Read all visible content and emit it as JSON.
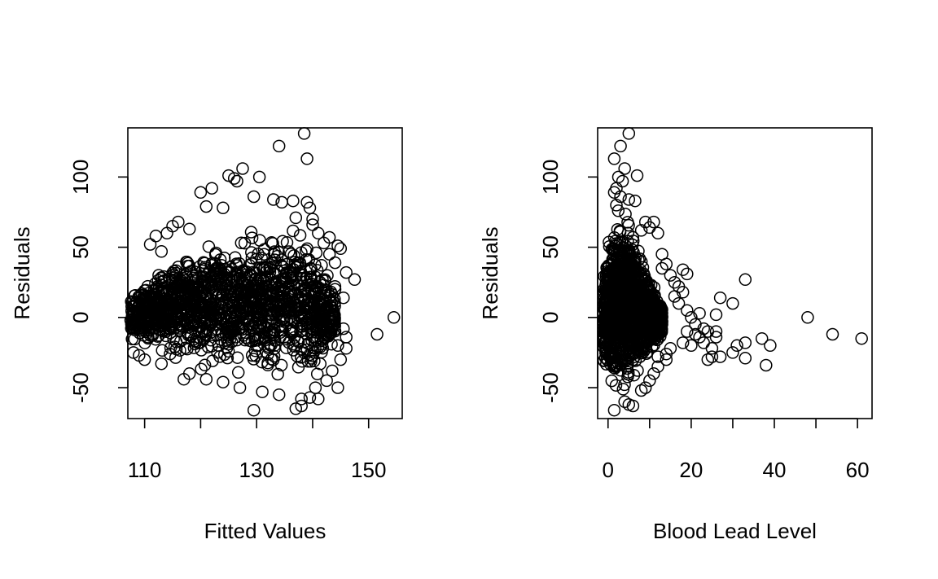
{
  "chart_data": [
    {
      "type": "scatter",
      "title": "",
      "xlabel": "Fitted Values",
      "ylabel": "Residuals",
      "xlim": [
        107,
        156
      ],
      "ylim": [
        -72,
        135
      ],
      "xticks": [
        110,
        120,
        130,
        140,
        150
      ],
      "xtick_labels": [
        "110",
        "",
        "130",
        "",
        "150"
      ],
      "yticks": [
        -50,
        0,
        50,
        100
      ],
      "ytick_labels": [
        "-50",
        "0",
        "50",
        "100"
      ],
      "grid": false,
      "legend": "none",
      "marker": "open-circle",
      "dense_region": {
        "description": "solid overplotted point cloud",
        "x": [
          107.5,
          109,
          111,
          113,
          116,
          119,
          122,
          125,
          128,
          131,
          134,
          137,
          139,
          141,
          142.5,
          143.5,
          144
        ],
        "y_upper": [
          22,
          28,
          36,
          42,
          50,
          56,
          62,
          66,
          70,
          72,
          72,
          70,
          66,
          56,
          46,
          38,
          25
        ],
        "y_lower": [
          -22,
          -25,
          -28,
          -32,
          -36,
          -40,
          -42,
          -44,
          -46,
          -48,
          -50,
          -52,
          -52,
          -48,
          -40,
          -32,
          -20
        ]
      },
      "points": [
        [
          138.5,
          131
        ],
        [
          134,
          122
        ],
        [
          139,
          113
        ],
        [
          127.5,
          106
        ],
        [
          125,
          101
        ],
        [
          126,
          99
        ],
        [
          130.5,
          100
        ],
        [
          120,
          89
        ],
        [
          122,
          92
        ],
        [
          126.5,
          97
        ],
        [
          129.5,
          86
        ],
        [
          133,
          84
        ],
        [
          134.5,
          82
        ],
        [
          136.5,
          83
        ],
        [
          139,
          82
        ],
        [
          139.5,
          78
        ],
        [
          137,
          71
        ],
        [
          140,
          70
        ],
        [
          141,
          60
        ],
        [
          143,
          57
        ],
        [
          144.5,
          51
        ],
        [
          145,
          49
        ],
        [
          142,
          53
        ],
        [
          140,
          66
        ],
        [
          143,
          45
        ],
        [
          144,
          39
        ],
        [
          146,
          32
        ],
        [
          147.5,
          27
        ],
        [
          145.5,
          14
        ],
        [
          144,
          20
        ],
        [
          146,
          -14
        ],
        [
          151.5,
          -12
        ],
        [
          154.5,
          0
        ],
        [
          144.5,
          -50
        ],
        [
          141,
          -58
        ],
        [
          138,
          -63
        ],
        [
          137,
          -65
        ],
        [
          129.5,
          -66
        ],
        [
          139.5,
          -57
        ],
        [
          140.5,
          -50
        ],
        [
          142.5,
          -45
        ],
        [
          143.5,
          -38
        ],
        [
          145,
          -30
        ],
        [
          144.5,
          -20
        ],
        [
          146,
          -22
        ],
        [
          145.5,
          -8
        ],
        [
          138,
          -58
        ],
        [
          134,
          -55
        ],
        [
          131,
          -53
        ],
        [
          127,
          -50
        ],
        [
          124,
          -46
        ],
        [
          121,
          -44
        ],
        [
          117,
          -44
        ],
        [
          118,
          -40
        ],
        [
          113,
          -33
        ],
        [
          110,
          -30
        ],
        [
          109,
          -27
        ],
        [
          108,
          -25
        ],
        [
          111,
          52
        ],
        [
          113,
          47
        ],
        [
          115,
          65
        ],
        [
          116,
          68
        ],
        [
          118,
          63
        ],
        [
          121,
          79
        ],
        [
          124,
          78
        ],
        [
          112,
          58
        ],
        [
          114,
          60
        ]
      ]
    },
    {
      "type": "scatter",
      "title": "",
      "xlabel": "Blood Lead Level",
      "ylabel": "Residuals",
      "xlim": [
        -2.5,
        63.5
      ],
      "ylim": [
        -72,
        135
      ],
      "xticks": [
        0,
        10,
        20,
        30,
        40,
        50,
        60
      ],
      "xtick_labels": [
        "0",
        "",
        "20",
        "",
        "40",
        "",
        "60"
      ],
      "yticks": [
        -50,
        0,
        50,
        100
      ],
      "ytick_labels": [
        "-50",
        "0",
        "50",
        "100"
      ],
      "grid": false,
      "legend": "none",
      "marker": "open-circle",
      "dense_region": {
        "description": "solid overplotted point cloud",
        "x": [
          -1,
          0,
          1,
          2,
          3,
          4,
          5,
          6,
          7,
          8,
          9,
          10,
          11,
          12,
          13
        ],
        "y_upper": [
          40,
          62,
          74,
          80,
          82,
          80,
          76,
          70,
          60,
          50,
          40,
          32,
          24,
          16,
          8
        ],
        "y_lower": [
          -40,
          -52,
          -58,
          -60,
          -60,
          -58,
          -54,
          -50,
          -45,
          -40,
          -35,
          -30,
          -25,
          -20,
          -15
        ]
      },
      "points": [
        [
          5,
          131
        ],
        [
          3,
          122
        ],
        [
          1.5,
          113
        ],
        [
          4,
          106
        ],
        [
          7,
          101
        ],
        [
          2.5,
          100
        ],
        [
          3.5,
          97
        ],
        [
          2,
          92
        ],
        [
          1.5,
          89
        ],
        [
          5,
          84
        ],
        [
          6.5,
          83
        ],
        [
          3,
          86
        ],
        [
          2,
          80
        ],
        [
          9,
          68
        ],
        [
          11,
          68
        ],
        [
          10,
          64
        ],
        [
          12,
          60
        ],
        [
          8,
          62
        ],
        [
          13,
          45
        ],
        [
          14,
          38
        ],
        [
          13,
          35
        ],
        [
          18,
          34
        ],
        [
          19,
          31
        ],
        [
          15,
          30
        ],
        [
          16,
          25
        ],
        [
          17,
          22
        ],
        [
          18,
          18
        ],
        [
          16,
          15
        ],
        [
          17,
          10
        ],
        [
          19,
          5
        ],
        [
          20,
          0
        ],
        [
          22,
          3
        ],
        [
          21,
          -5
        ],
        [
          23,
          -8
        ],
        [
          22,
          -14
        ],
        [
          24,
          -10
        ],
        [
          23,
          -18
        ],
        [
          25,
          -22
        ],
        [
          25,
          -28
        ],
        [
          24,
          -30
        ],
        [
          26,
          -14
        ],
        [
          26,
          -10
        ],
        [
          27,
          -28
        ],
        [
          27,
          14
        ],
        [
          26,
          2
        ],
        [
          30,
          10
        ],
        [
          30,
          -25
        ],
        [
          31,
          -20
        ],
        [
          33,
          27
        ],
        [
          33,
          -18
        ],
        [
          33,
          -29
        ],
        [
          37,
          -15
        ],
        [
          38,
          -34
        ],
        [
          39,
          -20
        ],
        [
          48,
          0
        ],
        [
          54,
          -12
        ],
        [
          61,
          -15
        ],
        [
          14,
          -30
        ],
        [
          12,
          -35
        ],
        [
          11,
          -40
        ],
        [
          10,
          -45
        ],
        [
          9,
          -50
        ],
        [
          8,
          -52
        ],
        [
          6,
          -63
        ],
        [
          5,
          -62
        ],
        [
          4,
          -60
        ],
        [
          1.5,
          -66
        ],
        [
          15,
          -22
        ],
        [
          18,
          -18
        ],
        [
          20,
          -20
        ],
        [
          21,
          -12
        ],
        [
          19,
          -10
        ],
        [
          14,
          -26
        ],
        [
          12,
          -28
        ]
      ]
    }
  ]
}
